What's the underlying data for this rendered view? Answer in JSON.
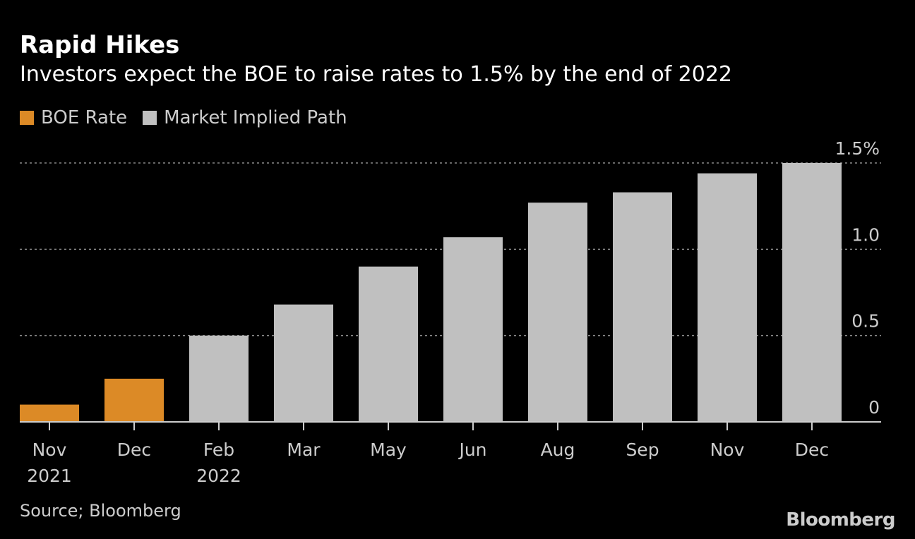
{
  "chart_data": {
    "type": "bar",
    "title": "Rapid Hikes",
    "subtitle": "Investors expect the BOE to raise rates to 1.5% by the end of 2022",
    "categories": [
      [
        "Nov",
        "2021"
      ],
      [
        "Dec",
        ""
      ],
      [
        "Feb",
        "2022"
      ],
      [
        "Mar",
        ""
      ],
      [
        "May",
        ""
      ],
      [
        "Jun",
        ""
      ],
      [
        "Aug",
        ""
      ],
      [
        "Sep",
        ""
      ],
      [
        "Nov",
        ""
      ],
      [
        "Dec",
        ""
      ]
    ],
    "series": [
      {
        "name": "BOE Rate",
        "color": "#dc8a26",
        "values": [
          0.1,
          0.25,
          null,
          null,
          null,
          null,
          null,
          null,
          null,
          null
        ]
      },
      {
        "name": "Market Implied Path",
        "color": "#c0c0c0",
        "values": [
          null,
          null,
          0.5,
          0.68,
          0.9,
          1.07,
          1.27,
          1.33,
          1.44,
          1.5
        ]
      }
    ],
    "ylim": [
      0,
      1.5
    ],
    "yticks": [
      0,
      0.5,
      1.0,
      1.5
    ],
    "ytick_labels": [
      "0",
      "0.5",
      "1.0",
      "1.5%"
    ],
    "yaxis_side": "right",
    "grid": "dotted horizontal",
    "legend_placement": "top-left",
    "source": "Source; Bloomberg",
    "logo": "Bloomberg"
  }
}
